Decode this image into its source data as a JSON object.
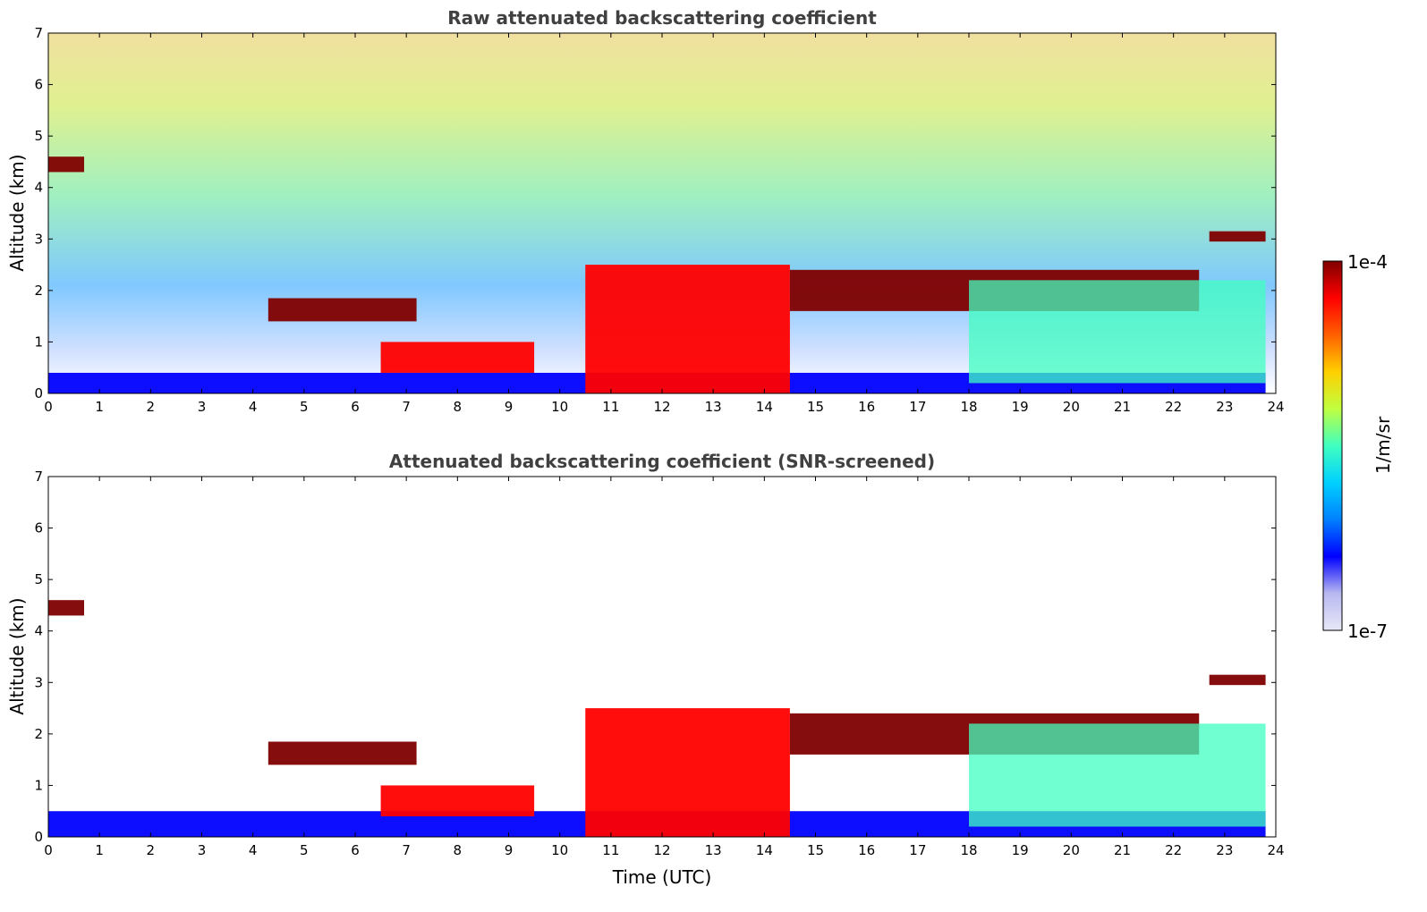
{
  "chart_data": [
    {
      "type": "heatmap",
      "title": "Raw attenuated backscattering coefficient",
      "xlabel": "",
      "ylabel": "Altitude (km)",
      "xlim": [
        0,
        24
      ],
      "ylim": [
        0,
        7
      ],
      "x_ticks": [
        "0",
        "1",
        "2",
        "3",
        "4",
        "5",
        "6",
        "7",
        "8",
        "9",
        "10",
        "11",
        "12",
        "13",
        "14",
        "15",
        "16",
        "17",
        "18",
        "19",
        "20",
        "21",
        "22",
        "23",
        "24"
      ],
      "y_ticks": [
        "0",
        "1",
        "2",
        "3",
        "4",
        "5",
        "6",
        "7"
      ],
      "grid": false,
      "colorscale": "jet",
      "layers": [
        {
          "feature": "boundary layer",
          "x": [
            0,
            23.8
          ],
          "y": [
            0,
            0.4
          ],
          "level": 0.15
        },
        {
          "feature": "cloud layer",
          "x": [
            4.3,
            7.2
          ],
          "y": [
            1.4,
            1.85
          ],
          "level": 1.0
        },
        {
          "feature": "cloud layer",
          "x": [
            6.5,
            9.5
          ],
          "y": [
            0.4,
            1.0
          ],
          "level": 0.9
        },
        {
          "feature": "convective plumes",
          "x": [
            10.5,
            14.5
          ],
          "y": [
            0,
            2.5
          ],
          "level": 0.85
        },
        {
          "feature": "cloud layer",
          "x": [
            14.5,
            22.5
          ],
          "y": [
            1.6,
            2.4
          ],
          "level": 1.0
        },
        {
          "feature": "cloud layer",
          "x": [
            22.7,
            23.8
          ],
          "y": [
            2.95,
            3.15
          ],
          "level": 1.0
        },
        {
          "feature": "precipitation streaks",
          "x": [
            18,
            23.8
          ],
          "y": [
            0.2,
            2.2
          ],
          "level": 0.45
        },
        {
          "feature": "high clouds",
          "x": [
            0,
            0.7
          ],
          "y": [
            4.3,
            4.6
          ],
          "level": 1.0
        }
      ]
    },
    {
      "type": "heatmap",
      "title": "Attenuated backscattering coefficient (SNR-screened)",
      "xlabel": "Time (UTC)",
      "ylabel": "Altitude (km)",
      "xlim": [
        0,
        24
      ],
      "ylim": [
        0,
        7
      ],
      "x_ticks": [
        "0",
        "1",
        "2",
        "3",
        "4",
        "5",
        "6",
        "7",
        "8",
        "9",
        "10",
        "11",
        "12",
        "13",
        "14",
        "15",
        "16",
        "17",
        "18",
        "19",
        "20",
        "21",
        "22",
        "23",
        "24"
      ],
      "y_ticks": [
        "0",
        "1",
        "2",
        "3",
        "4",
        "5",
        "6",
        "7"
      ],
      "grid": false,
      "colorscale": "jet",
      "layers": [
        {
          "feature": "boundary layer",
          "x": [
            0,
            23.8
          ],
          "y": [
            0,
            0.5
          ],
          "level": 0.15
        },
        {
          "feature": "cloud layer",
          "x": [
            4.3,
            7.2
          ],
          "y": [
            1.4,
            1.85
          ],
          "level": 1.0
        },
        {
          "feature": "cloud layer",
          "x": [
            6.5,
            9.5
          ],
          "y": [
            0.4,
            1.0
          ],
          "level": 0.9
        },
        {
          "feature": "convective plumes",
          "x": [
            10.5,
            14.5
          ],
          "y": [
            0,
            2.5
          ],
          "level": 0.85
        },
        {
          "feature": "cloud layer",
          "x": [
            14.5,
            22.5
          ],
          "y": [
            1.6,
            2.4
          ],
          "level": 1.0
        },
        {
          "feature": "cloud layer",
          "x": [
            22.7,
            23.8
          ],
          "y": [
            2.95,
            3.15
          ],
          "level": 1.0
        },
        {
          "feature": "precipitation streaks",
          "x": [
            18,
            23.8
          ],
          "y": [
            0.2,
            2.2
          ],
          "level": 0.45
        },
        {
          "feature": "high clouds",
          "x": [
            0,
            0.7
          ],
          "y": [
            4.3,
            4.6
          ],
          "level": 1.0
        }
      ]
    }
  ],
  "colorbar": {
    "label": "1/m/sr",
    "max_label": "1e-4",
    "min_label": "1e-7",
    "colors": [
      "#e8e8f8",
      "#b8b8f0",
      "#0000ff",
      "#0080ff",
      "#00d0ff",
      "#40ffc0",
      "#c0ff40",
      "#ffd000",
      "#ff6000",
      "#ff0000",
      "#800000"
    ]
  }
}
